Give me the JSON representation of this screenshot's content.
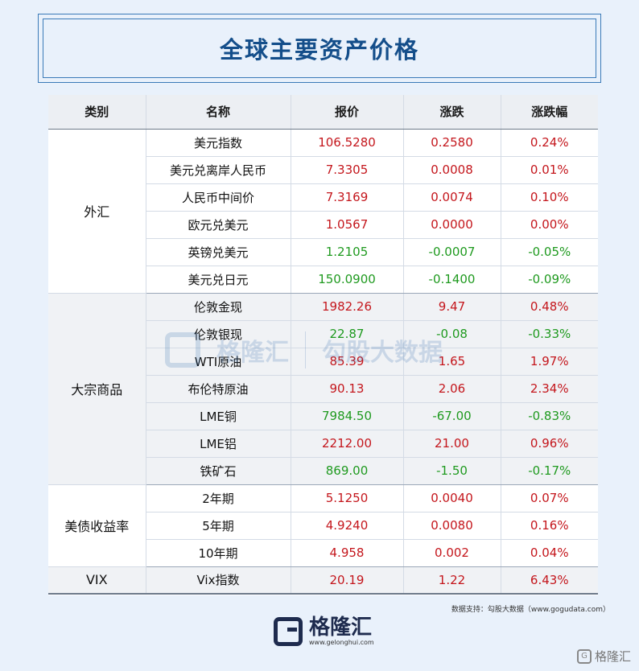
{
  "title": "全球主要资产价格",
  "headers": [
    "类别",
    "名称",
    "报价",
    "涨跌",
    "涨跌幅"
  ],
  "groups": [
    {
      "category": "外汇",
      "rows": [
        {
          "name": "美元指数",
          "price": "106.5280",
          "change": "0.2580",
          "pct": "0.24%",
          "color": "red"
        },
        {
          "name": "美元兑离岸人民币",
          "price": "7.3305",
          "change": "0.0008",
          "pct": "0.01%",
          "color": "red"
        },
        {
          "name": "人民币中间价",
          "price": "7.3169",
          "change": "0.0074",
          "pct": "0.10%",
          "color": "red"
        },
        {
          "name": "欧元兑美元",
          "price": "1.0567",
          "change": "0.0000",
          "pct": "0.00%",
          "color": "red"
        },
        {
          "name": "英镑兑美元",
          "price": "1.2105",
          "change": "-0.0007",
          "pct": "-0.05%",
          "color": "green"
        },
        {
          "name": "美元兑日元",
          "price": "150.0900",
          "change": "-0.1400",
          "pct": "-0.09%",
          "color": "green"
        }
      ]
    },
    {
      "category": "大宗商品",
      "rows": [
        {
          "name": "伦敦金现",
          "price": "1982.26",
          "change": "9.47",
          "pct": "0.48%",
          "color": "red"
        },
        {
          "name": "伦敦银现",
          "price": "22.87",
          "change": "-0.08",
          "pct": "-0.33%",
          "color": "green"
        },
        {
          "name": "WTI原油",
          "price": "85.39",
          "change": "1.65",
          "pct": "1.97%",
          "color": "red"
        },
        {
          "name": "布伦特原油",
          "price": "90.13",
          "change": "2.06",
          "pct": "2.34%",
          "color": "red"
        },
        {
          "name": "LME铜",
          "price": "7984.50",
          "change": "-67.00",
          "pct": "-0.83%",
          "color": "green"
        },
        {
          "name": "LME铝",
          "price": "2212.00",
          "change": "21.00",
          "pct": "0.96%",
          "color": "red"
        },
        {
          "name": "铁矿石",
          "price": "869.00",
          "change": "-1.50",
          "pct": "-0.17%",
          "color": "green"
        }
      ]
    },
    {
      "category": "美债收益率",
      "rows": [
        {
          "name": "2年期",
          "price": "5.1250",
          "change": "0.0040",
          "pct": "0.07%",
          "color": "red"
        },
        {
          "name": "5年期",
          "price": "4.9240",
          "change": "0.0080",
          "pct": "0.16%",
          "color": "red"
        },
        {
          "name": "10年期",
          "price": "4.958",
          "change": "0.002",
          "pct": "0.04%",
          "color": "red"
        }
      ]
    },
    {
      "category": "VIX",
      "rows": [
        {
          "name": "Vix指数",
          "price": "20.19",
          "change": "1.22",
          "pct": "6.43%",
          "color": "red"
        }
      ]
    }
  ],
  "source": "数据支持：勾股大数据（www.gogudata.com）",
  "watermark": {
    "brand": "格隆汇",
    "site": "www.gelonghui.com",
    "partner": "勾股大数据",
    "partner_site": "www.gogudata.com"
  },
  "footer": {
    "brand": "格隆汇",
    "url": "www.gelonghui.com"
  },
  "corner": {
    "icon": "G",
    "brand": "格隆汇"
  },
  "colors": {
    "up": "#c4161c",
    "down": "#1f9a1f",
    "title": "#144e8a",
    "background": "#e9f1fb"
  }
}
